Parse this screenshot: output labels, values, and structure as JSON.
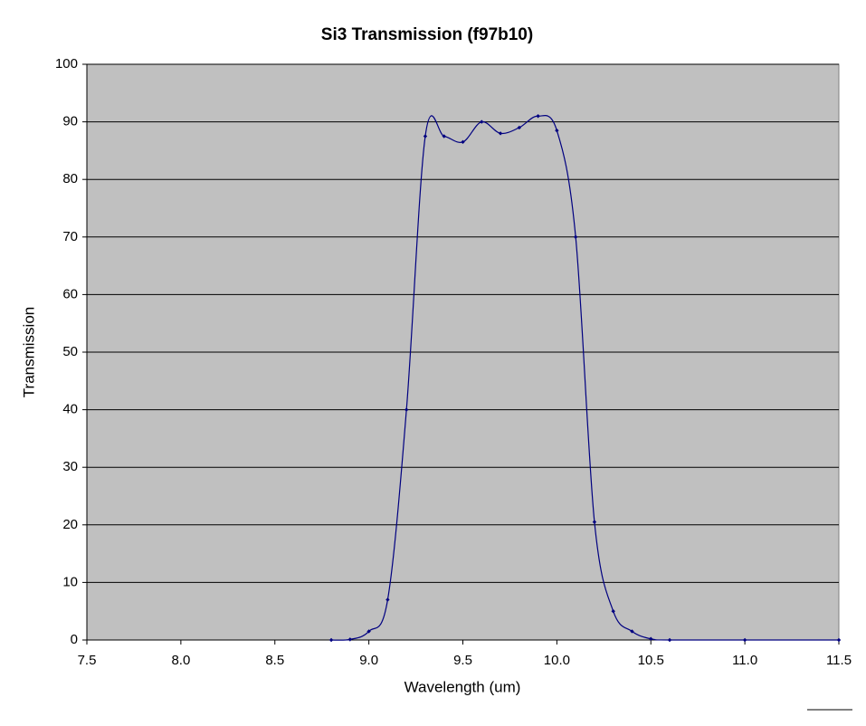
{
  "chart_data": {
    "type": "line",
    "title": "Si3 Transmission (f97b10)",
    "x_label": "Wavelength (um)",
    "y_label": "Transmission",
    "x": [
      8.8,
      8.9,
      9.0,
      9.1,
      9.2,
      9.3,
      9.4,
      9.5,
      9.6,
      9.7,
      9.8,
      9.9,
      10.0,
      10.1,
      10.2,
      10.3,
      10.4,
      10.5,
      10.6,
      11.0,
      11.5
    ],
    "series": [
      {
        "color": "#000080",
        "values": [
          0,
          0.1,
          1.5,
          7,
          40,
          87.5,
          87.5,
          86.5,
          90,
          88,
          89,
          91,
          88.5,
          70,
          20.5,
          5,
          1.5,
          0.2,
          0,
          0,
          0
        ]
      }
    ],
    "xlim": [
      7.5,
      11.5
    ],
    "xticks": [
      7.5,
      {
        "value": 8,
        "label": "8.0"
      },
      8.5,
      {
        "value": 9,
        "label": "9.0"
      },
      9.5,
      {
        "value": 10,
        "label": "10.0"
      },
      10.5,
      {
        "value": 11,
        "label": "11.0"
      },
      11.5
    ],
    "ylim": [
      0,
      100
    ],
    "yticks": [
      0,
      10,
      20,
      30,
      40,
      50,
      60,
      70,
      80,
      90,
      100
    ],
    "grid": true,
    "plot_background": "#c0c0c0"
  }
}
